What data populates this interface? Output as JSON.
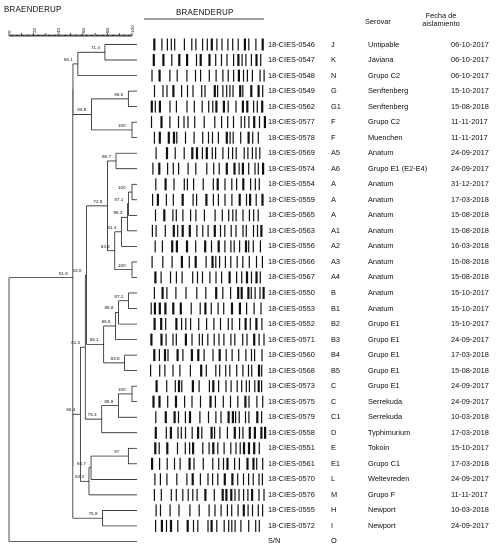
{
  "dendrogram_title": "BRAENDERUP",
  "gel_title": "BRAENDERUP",
  "scale_ticks": [
    "0",
    "10",
    "20",
    "30",
    "40",
    "50",
    "60",
    "70",
    "80",
    "90",
    "100"
  ],
  "columns": {
    "serovar": "Serovar",
    "date_line1": "Fecha de",
    "date_line2": "aislamiento"
  },
  "rows": [
    {
      "id": "18-CIES-0546",
      "code": "J",
      "serovar": "Untipable",
      "date": "06-10-2017"
    },
    {
      "id": "18-CIES-0547",
      "code": "K",
      "serovar": "Javiana",
      "date": "06-10-2017"
    },
    {
      "id": "18-CIES-0548",
      "code": "N",
      "serovar": "Grupo C2",
      "date": "06-10-2017"
    },
    {
      "id": "18-CIES-0549",
      "code": "G",
      "serovar": "Senftenberg",
      "date": "15-10-2017"
    },
    {
      "id": "18-CIES-0562",
      "code": "G1",
      "serovar": "Senftenberg",
      "date": "15-08-2018"
    },
    {
      "id": "18-CIES-0577",
      "code": "F",
      "serovar": "Grupo C2",
      "date": "11-11-2017"
    },
    {
      "id": "18-CIES-0578",
      "code": "F",
      "serovar": "Muenchen",
      "date": "11-11-2017"
    },
    {
      "id": "18-CIES-0569",
      "code": "A5",
      "serovar": "Anatum",
      "date": "24-09-2017"
    },
    {
      "id": "18-CIES-0574",
      "code": "A6",
      "serovar": "Grupo E1 (E2-E4)",
      "date": "24-09-2017"
    },
    {
      "id": "18-CIES-0554",
      "code": "A",
      "serovar": "Anatum",
      "date": "31-12-2017"
    },
    {
      "id": "18-CIES-0559",
      "code": "A",
      "serovar": "Anatum",
      "date": "17-03-2018"
    },
    {
      "id": "18-CIES-0565",
      "code": "A",
      "serovar": "Anatum",
      "date": "15-08-2018"
    },
    {
      "id": "18-CIES-0563",
      "code": "A1",
      "serovar": "Anatum",
      "date": "15-08-2018"
    },
    {
      "id": "18-CIES-0556",
      "code": "A2",
      "serovar": "Anatum",
      "date": "16-03-2018"
    },
    {
      "id": "18-CIES-0566",
      "code": "A3",
      "serovar": "Anatum",
      "date": "15-08-2018"
    },
    {
      "id": "18-CIES-0567",
      "code": "A4",
      "serovar": "Anatum",
      "date": "15-08-2018"
    },
    {
      "id": "18-CIES-0550",
      "code": "B",
      "serovar": "Anatum",
      "date": "15-10-2017"
    },
    {
      "id": "18-CIES-0553",
      "code": "B1",
      "serovar": "Anatum",
      "date": "15-10-2017"
    },
    {
      "id": "18-CIES-0552",
      "code": "B2",
      "serovar": "Grupo E1",
      "date": "15-10-2017"
    },
    {
      "id": "18-CIES-0571",
      "code": "B3",
      "serovar": "Grupo E1",
      "date": "24-09-2017"
    },
    {
      "id": "18-CIES-0560",
      "code": "B4",
      "serovar": "Grupo E1",
      "date": "17-03-2018"
    },
    {
      "id": "18-CIES-0568",
      "code": "B5",
      "serovar": "Grupo E1",
      "date": "15-08-2018"
    },
    {
      "id": "18-CIES-0573",
      "code": "C",
      "serovar": "Grupo E1",
      "date": "24-09-2017"
    },
    {
      "id": "18-CIES-0575",
      "code": "C",
      "serovar": "Serrekuda",
      "date": "24-09-2017"
    },
    {
      "id": "18-CIES-0579",
      "code": "C1",
      "serovar": "Serrekuda",
      "date": "10-03-2018"
    },
    {
      "id": "18-CIES-0558",
      "code": "D",
      "serovar": "Typhimurium",
      "date": "17-03-2018"
    },
    {
      "id": "18-CIES-0551",
      "code": "E",
      "serovar": "Tokoin",
      "date": "15-10-2017"
    },
    {
      "id": "18-CIES-0561",
      "code": "E1",
      "serovar": "Grupo C1",
      "date": "17-03-2018"
    },
    {
      "id": "18-CIES-0570",
      "code": "L",
      "serovar": "Weltevreden",
      "date": "24-09-2017"
    },
    {
      "id": "18-CIES-0576",
      "code": "M",
      "serovar": "Grupo F",
      "date": "11-11-2017"
    },
    {
      "id": "18-CIES-0555",
      "code": "H",
      "serovar": "Newport",
      "date": "10-03-2018"
    },
    {
      "id": "18-CIES-0572",
      "code": "I",
      "serovar": "Newport",
      "date": "24-09-2017"
    },
    {
      "id": "S/N",
      "code": "O",
      "serovar": "",
      "date": ""
    }
  ],
  "node_labels": {
    "n71": "71.4",
    "n561": "56.1",
    "n966": "96.6",
    "n668": "66.8",
    "n100a": "100",
    "n867": "86.7",
    "n632": "63.2",
    "n100b": "100",
    "n971a": "97.1",
    "n963": "96.3",
    "n914": "91.4",
    "n100c": "100",
    "n630": "63.0",
    "n728": "72.8",
    "n971b": "97.1",
    "n889": "88.9",
    "n866": "86.6",
    "n651": "65.1",
    "n938": "93.8",
    "n100d": "100",
    "n612": "61.2",
    "n889b": "88.9",
    "n754": "75.4",
    "n564": "56.4",
    "n97": "97",
    "n667": "66.7",
    "n643": "64.3",
    "n759": "75.9",
    "n519": "51.9",
    "n0": "0"
  }
}
